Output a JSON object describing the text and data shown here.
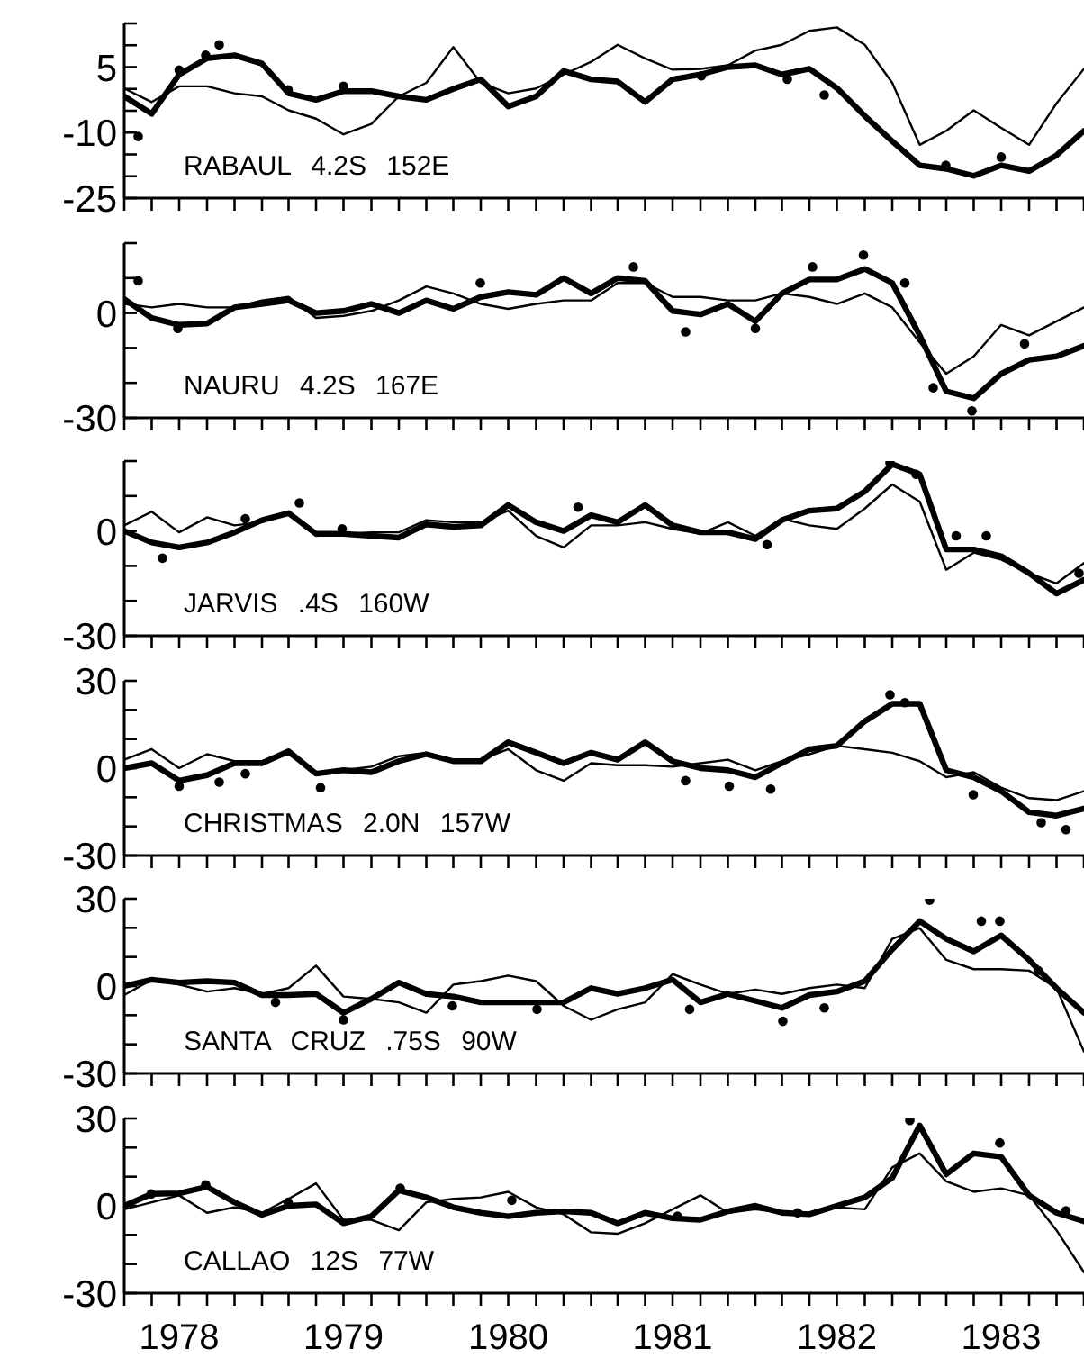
{
  "chart_data": [
    {
      "type": "line",
      "annotations": [
        "RABAUL 4.2S 152E"
      ],
      "tick_labels": "y",
      "xlim": [
        "1978-03",
        "1984-01"
      ],
      "ylim": [
        -25,
        15
      ],
      "yticks": [
        -25,
        {
          "value": -20,
          "label": null
        },
        {
          "value": -15,
          "label": null
        },
        -10,
        {
          "value": -5,
          "label": null
        },
        {
          "value": 0,
          "label": null
        },
        5,
        {
          "value": 10,
          "label": null
        },
        {
          "value": 15,
          "label": null
        }
      ],
      "xticks": [
        {
          "value": "1978-03",
          "label": null
        },
        {
          "value": "1978-05",
          "label": null
        },
        {
          "value": "1978-07",
          "label": null
        },
        {
          "value": "1978-09",
          "label": null
        },
        {
          "value": "1978-11",
          "label": null
        },
        {
          "value": "1979-01",
          "label": null
        },
        {
          "value": "1979-03",
          "label": null
        },
        {
          "value": "1979-05",
          "label": null
        },
        {
          "value": "1979-07",
          "label": null
        },
        {
          "value": "1979-09",
          "label": null
        },
        {
          "value": "1979-11",
          "label": null
        },
        {
          "value": "1980-01",
          "label": null
        },
        {
          "value": "1980-03",
          "label": null
        },
        {
          "value": "1980-05",
          "label": null
        },
        {
          "value": "1980-07",
          "label": null
        },
        {
          "value": "1980-09",
          "label": null
        },
        {
          "value": "1980-11",
          "label": null
        },
        {
          "value": "1981-01",
          "label": null
        },
        {
          "value": "1981-03",
          "label": null
        },
        {
          "value": "1981-05",
          "label": null
        },
        {
          "value": "1981-07",
          "label": null
        },
        {
          "value": "1981-09",
          "label": null
        },
        {
          "value": "1981-11",
          "label": null
        },
        {
          "value": "1982-01",
          "label": null
        },
        {
          "value": "1982-03",
          "label": null
        },
        {
          "value": "1982-05",
          "label": null
        },
        {
          "value": "1982-07",
          "label": null
        },
        {
          "value": "1982-09",
          "label": null
        },
        {
          "value": "1982-11",
          "label": null
        },
        {
          "value": "1983-01",
          "label": null
        },
        {
          "value": "1983-03",
          "label": null
        },
        {
          "value": "1983-05",
          "label": null
        },
        {
          "value": "1983-07",
          "label": null
        },
        {
          "value": "1983-09",
          "label": null
        },
        {
          "value": "1983-11",
          "label": null
        },
        {
          "value": "1984-01",
          "label": null
        }
      ],
      "x": [
        "1978-03",
        "1978-05",
        "1978-07",
        "1978-09",
        "1978-11",
        "1979-01",
        "1979-03",
        "1979-05",
        "1979-07",
        "1979-09",
        "1979-11",
        "1980-01",
        "1980-03",
        "1980-05",
        "1980-07",
        "1980-09",
        "1980-11",
        "1981-01",
        "1981-03",
        "1981-05",
        "1981-07",
        "1981-09",
        "1981-11",
        "1982-01",
        "1982-03",
        "1982-05",
        "1982-07",
        "1982-09",
        "1982-11",
        "1983-01",
        "1983-03",
        "1983-05",
        "1983-07",
        "1983-09",
        "1983-11",
        "1984-01"
      ],
      "series": [
        {
          "type": "line",
          "color": "#000000",
          "values": [
            -1.7,
            -5.7,
            3.3,
            7,
            7.7,
            5.8,
            -1,
            -2.5,
            -0.5,
            -0.5,
            -1.7,
            -2.5,
            0,
            2.2,
            -4,
            -1.7,
            4.1,
            2.2,
            1.7,
            -3,
            2.2,
            3.3,
            5,
            5.4,
            3.3,
            4.6,
            0.2,
            -6.2,
            -12,
            -17.5,
            -18.3,
            -19.9,
            -17.5,
            -18.8,
            -15.2,
            -9.6
          ]
        },
        {
          "type": "line",
          "color": "#000000",
          "values": [
            0.1,
            -3,
            0.6,
            0.6,
            -1,
            -1.7,
            -4.9,
            -6.8,
            -10.4,
            -8,
            -1.7,
            1.4,
            9.6,
            1.4,
            -1,
            0.1,
            3.3,
            6.2,
            10.1,
            7,
            4.4,
            4.6,
            5.4,
            8.8,
            10.1,
            13.3,
            14.1,
            10.1,
            1.4,
            -12.8,
            -9.6,
            -4.9,
            -8.9,
            -12.8,
            -3.3,
            4.6
          ]
        },
        {
          "type": "scatter",
          "marker": "circle",
          "color": "#000000",
          "x": [
            "1978-04-01",
            "1978-07-01",
            "1978-08-29",
            "1978-09-28",
            "1979-02-28",
            "1979-07-01",
            "1981-09-03",
            "1982-03-13",
            "1982-06-03",
            "1983-02-28",
            "1983-07-01"
          ],
          "values": [
            -10.9,
            4.3,
            7.7,
            10.1,
            -0.2,
            0.6,
            3,
            2.2,
            -1.4,
            -17.5,
            -15.6
          ]
        }
      ]
    },
    {
      "type": "line",
      "annotations": [
        "NAURU 4.2S 167E"
      ],
      "tick_labels": "y",
      "xlim": [
        "1978-03",
        "1984-01"
      ],
      "ylim": [
        -30,
        20
      ],
      "yticks": [
        -30,
        {
          "value": -20,
          "label": null
        },
        {
          "value": -10,
          "label": null
        },
        0,
        {
          "value": 10,
          "label": null
        },
        {
          "value": 20,
          "label": null
        }
      ],
      "xticks": [
        {
          "value": "1978-03",
          "label": null
        },
        {
          "value": "1978-05",
          "label": null
        },
        {
          "value": "1978-07",
          "label": null
        },
        {
          "value": "1978-09",
          "label": null
        },
        {
          "value": "1978-11",
          "label": null
        },
        {
          "value": "1979-01",
          "label": null
        },
        {
          "value": "1979-03",
          "label": null
        },
        {
          "value": "1979-05",
          "label": null
        },
        {
          "value": "1979-07",
          "label": null
        },
        {
          "value": "1979-09",
          "label": null
        },
        {
          "value": "1979-11",
          "label": null
        },
        {
          "value": "1980-01",
          "label": null
        },
        {
          "value": "1980-03",
          "label": null
        },
        {
          "value": "1980-05",
          "label": null
        },
        {
          "value": "1980-07",
          "label": null
        },
        {
          "value": "1980-09",
          "label": null
        },
        {
          "value": "1980-11",
          "label": null
        },
        {
          "value": "1981-01",
          "label": null
        },
        {
          "value": "1981-03",
          "label": null
        },
        {
          "value": "1981-05",
          "label": null
        },
        {
          "value": "1981-07",
          "label": null
        },
        {
          "value": "1981-09",
          "label": null
        },
        {
          "value": "1981-11",
          "label": null
        },
        {
          "value": "1982-01",
          "label": null
        },
        {
          "value": "1982-03",
          "label": null
        },
        {
          "value": "1982-05",
          "label": null
        },
        {
          "value": "1982-07",
          "label": null
        },
        {
          "value": "1982-09",
          "label": null
        },
        {
          "value": "1982-11",
          "label": null
        },
        {
          "value": "1983-01",
          "label": null
        },
        {
          "value": "1983-03",
          "label": null
        },
        {
          "value": "1983-05",
          "label": null
        },
        {
          "value": "1983-07",
          "label": null
        },
        {
          "value": "1983-09",
          "label": null
        },
        {
          "value": "1983-11",
          "label": null
        },
        {
          "value": "1984-01",
          "label": null
        }
      ],
      "x": [
        "1978-03",
        "1978-05",
        "1978-07",
        "1978-09",
        "1978-11",
        "1979-01",
        "1979-03",
        "1979-05",
        "1979-07",
        "1979-09",
        "1979-11",
        "1980-01",
        "1980-03",
        "1980-05",
        "1980-07",
        "1980-09",
        "1980-11",
        "1981-01",
        "1981-03",
        "1981-05",
        "1981-07",
        "1981-09",
        "1981-11",
        "1982-01",
        "1982-03",
        "1982-05",
        "1982-07",
        "1982-09",
        "1982-11",
        "1983-01",
        "1983-03",
        "1983-05",
        "1983-07",
        "1983-09",
        "1983-11",
        "1984-01"
      ],
      "series": [
        {
          "type": "line",
          "color": "#000000",
          "values": [
            4,
            -1.4,
            -3.4,
            -3,
            1.6,
            2.6,
            3.6,
            0,
            0.6,
            2.6,
            0,
            3.6,
            1.2,
            4.6,
            6,
            5.2,
            10,
            5.6,
            10,
            9.2,
            0.6,
            -0.4,
            2.6,
            -2.4,
            5.6,
            9.6,
            9.6,
            12.6,
            8.6,
            -6.4,
            -22.4,
            -24.4,
            -17.4,
            -13.4,
            -12.4,
            -9.4
          ]
        },
        {
          "type": "line",
          "color": "#000000",
          "values": [
            2.6,
            1.6,
            2.6,
            1.6,
            1.6,
            3.6,
            4.6,
            -1.4,
            -0.8,
            0.6,
            3.6,
            7.6,
            5.6,
            2.6,
            1.2,
            2.6,
            3.6,
            3.6,
            8.6,
            8.6,
            4.6,
            4.6,
            3.6,
            3.6,
            5.6,
            4.6,
            2.6,
            5.6,
            1.6,
            -8.4,
            -17.4,
            -12.4,
            -3.4,
            -6.4,
            -2.4,
            1.6
          ]
        },
        {
          "type": "scatter",
          "marker": "circle",
          "color": "#000000",
          "x": [
            "1978-04-01",
            "1978-06-28",
            "1980-04-30",
            "1981-04-05",
            "1981-07-30",
            "1982-01-01",
            "1982-05-08",
            "1982-08-29",
            "1982-11-29",
            "1983-01-31",
            "1983-04-27",
            "1983-08-22"
          ],
          "values": [
            9.2,
            -4.4,
            8.6,
            13.2,
            -5.4,
            -4.4,
            13.2,
            16.6,
            8.6,
            -21.4,
            -28,
            -8.8
          ]
        }
      ]
    },
    {
      "type": "line",
      "annotations": [
        "JARVIS .4S 160W"
      ],
      "tick_labels": "y",
      "xlim": [
        "1978-03",
        "1984-01"
      ],
      "ylim": [
        -30,
        20
      ],
      "yticks": [
        -30,
        {
          "value": -20,
          "label": null
        },
        {
          "value": -10,
          "label": null
        },
        0,
        {
          "value": 10,
          "label": null
        },
        {
          "value": 20,
          "label": null
        }
      ],
      "xticks": [
        {
          "value": "1978-03",
          "label": null
        },
        {
          "value": "1978-05",
          "label": null
        },
        {
          "value": "1978-07",
          "label": null
        },
        {
          "value": "1978-09",
          "label": null
        },
        {
          "value": "1978-11",
          "label": null
        },
        {
          "value": "1979-01",
          "label": null
        },
        {
          "value": "1979-03",
          "label": null
        },
        {
          "value": "1979-05",
          "label": null
        },
        {
          "value": "1979-07",
          "label": null
        },
        {
          "value": "1979-09",
          "label": null
        },
        {
          "value": "1979-11",
          "label": null
        },
        {
          "value": "1980-01",
          "label": null
        },
        {
          "value": "1980-03",
          "label": null
        },
        {
          "value": "1980-05",
          "label": null
        },
        {
          "value": "1980-07",
          "label": null
        },
        {
          "value": "1980-09",
          "label": null
        },
        {
          "value": "1980-11",
          "label": null
        },
        {
          "value": "1981-01",
          "label": null
        },
        {
          "value": "1981-03",
          "label": null
        },
        {
          "value": "1981-05",
          "label": null
        },
        {
          "value": "1981-07",
          "label": null
        },
        {
          "value": "1981-09",
          "label": null
        },
        {
          "value": "1981-11",
          "label": null
        },
        {
          "value": "1982-01",
          "label": null
        },
        {
          "value": "1982-03",
          "label": null
        },
        {
          "value": "1982-05",
          "label": null
        },
        {
          "value": "1982-07",
          "label": null
        },
        {
          "value": "1982-09",
          "label": null
        },
        {
          "value": "1982-11",
          "label": null
        },
        {
          "value": "1983-01",
          "label": null
        },
        {
          "value": "1983-03",
          "label": null
        },
        {
          "value": "1983-05",
          "label": null
        },
        {
          "value": "1983-07",
          "label": null
        },
        {
          "value": "1983-09",
          "label": null
        },
        {
          "value": "1983-11",
          "label": null
        },
        {
          "value": "1984-01",
          "label": null
        }
      ],
      "x": [
        "1978-03",
        "1978-05",
        "1978-07",
        "1978-09",
        "1978-11",
        "1979-01",
        "1979-03",
        "1979-05",
        "1979-07",
        "1979-09",
        "1979-11",
        "1980-01",
        "1980-03",
        "1980-05",
        "1980-07",
        "1980-09",
        "1980-11",
        "1981-01",
        "1981-03",
        "1981-05",
        "1981-07",
        "1981-09",
        "1981-11",
        "1982-01",
        "1982-03",
        "1982-05",
        "1982-07",
        "1982-09",
        "1982-11",
        "1983-01",
        "1983-03",
        "1983-05",
        "1983-07",
        "1983-09",
        "1983-11",
        "1984-01"
      ],
      "series": [
        {
          "type": "line",
          "color": "#000000",
          "values": [
            0,
            -3.3,
            -4.7,
            -3.3,
            -0.4,
            3.1,
            5.1,
            -0.8,
            -0.8,
            -1.4,
            -1.9,
            1.9,
            1.2,
            1.6,
            7.4,
            2.5,
            0,
            4.5,
            2.5,
            7.4,
            1.6,
            -0.4,
            -0.4,
            -2.3,
            3.1,
            5.8,
            6.4,
            11.3,
            19.1,
            16.2,
            -5.3,
            -5.3,
            -7.2,
            -12.1,
            -17.9,
            -14
          ]
        },
        {
          "type": "line",
          "color": "#000000",
          "values": [
            1.6,
            5.5,
            -0.4,
            3.9,
            1.6,
            2.5,
            5.1,
            -1.4,
            -0.8,
            -0.4,
            -0.4,
            3.1,
            2.5,
            2.5,
            5.8,
            -1.4,
            -4.7,
            1.6,
            1.6,
            2.5,
            0.6,
            -0.8,
            2.5,
            -1.4,
            3.5,
            1.6,
            0.6,
            6.4,
            13.3,
            8.4,
            -11.1,
            -6.2,
            -8.2,
            -12.1,
            -15,
            -9.2
          ]
        },
        {
          "type": "scatter",
          "marker": "circle",
          "color": "#000000",
          "x": [
            "1978-05-25",
            "1978-11-25",
            "1979-03-25",
            "1979-06-28",
            "1980-12-03",
            "1982-01-27",
            "1982-10-27",
            "1982-12-24",
            "1983-03-23",
            "1983-05-29",
            "1983-12-21"
          ],
          "values": [
            -7.8,
            3.5,
            8,
            0.6,
            6.8,
            -3.9,
            19.5,
            16.2,
            -1.4,
            -1.4,
            -12.1
          ]
        }
      ]
    },
    {
      "type": "line",
      "annotations": [
        "CHRISTMAS 2.0N 157W"
      ],
      "tick_labels": "y",
      "xlim": [
        "1978-03",
        "1984-01"
      ],
      "ylim": [
        -30,
        30
      ],
      "yticks": [
        -30,
        {
          "value": -20,
          "label": null
        },
        {
          "value": -10,
          "label": null
        },
        0,
        {
          "value": 10,
          "label": null
        },
        {
          "value": 20,
          "label": null
        },
        30
      ],
      "xticks": [
        {
          "value": "1978-03",
          "label": null
        },
        {
          "value": "1978-05",
          "label": null
        },
        {
          "value": "1978-07",
          "label": null
        },
        {
          "value": "1978-09",
          "label": null
        },
        {
          "value": "1978-11",
          "label": null
        },
        {
          "value": "1979-01",
          "label": null
        },
        {
          "value": "1979-03",
          "label": null
        },
        {
          "value": "1979-05",
          "label": null
        },
        {
          "value": "1979-07",
          "label": null
        },
        {
          "value": "1979-09",
          "label": null
        },
        {
          "value": "1979-11",
          "label": null
        },
        {
          "value": "1980-01",
          "label": null
        },
        {
          "value": "1980-03",
          "label": null
        },
        {
          "value": "1980-05",
          "label": null
        },
        {
          "value": "1980-07",
          "label": null
        },
        {
          "value": "1980-09",
          "label": null
        },
        {
          "value": "1980-11",
          "label": null
        },
        {
          "value": "1981-01",
          "label": null
        },
        {
          "value": "1981-03",
          "label": null
        },
        {
          "value": "1981-05",
          "label": null
        },
        {
          "value": "1981-07",
          "label": null
        },
        {
          "value": "1981-09",
          "label": null
        },
        {
          "value": "1981-11",
          "label": null
        },
        {
          "value": "1982-01",
          "label": null
        },
        {
          "value": "1982-03",
          "label": null
        },
        {
          "value": "1982-05",
          "label": null
        },
        {
          "value": "1982-07",
          "label": null
        },
        {
          "value": "1982-09",
          "label": null
        },
        {
          "value": "1982-11",
          "label": null
        },
        {
          "value": "1983-01",
          "label": null
        },
        {
          "value": "1983-03",
          "label": null
        },
        {
          "value": "1983-05",
          "label": null
        },
        {
          "value": "1983-07",
          "label": null
        },
        {
          "value": "1983-09",
          "label": null
        },
        {
          "value": "1983-11",
          "label": null
        },
        {
          "value": "1984-01",
          "label": null
        }
      ],
      "x": [
        "1978-03",
        "1978-05",
        "1978-07",
        "1978-09",
        "1978-11",
        "1979-01",
        "1979-03",
        "1979-05",
        "1979-07",
        "1979-09",
        "1979-11",
        "1980-01",
        "1980-03",
        "1980-05",
        "1980-07",
        "1980-09",
        "1980-11",
        "1981-01",
        "1981-03",
        "1981-05",
        "1981-07",
        "1981-09",
        "1981-11",
        "1982-01",
        "1982-03",
        "1982-05",
        "1982-07",
        "1982-09",
        "1982-11",
        "1983-01",
        "1983-03",
        "1983-05",
        "1983-07",
        "1983-09",
        "1983-11",
        "1984-01"
      ],
      "series": [
        {
          "type": "line",
          "color": "#000000",
          "values": [
            0,
            1.7,
            -4.3,
            -2.4,
            1.7,
            1.7,
            5.8,
            -1.9,
            -0.7,
            -1.4,
            2.4,
            4.8,
            2.4,
            2.4,
            8.9,
            5.3,
            1.7,
            5.3,
            2.9,
            8.9,
            2.4,
            0,
            -0.7,
            -3.1,
            1.7,
            6.5,
            7.7,
            16.1,
            22.1,
            22.1,
            -0.7,
            -3.1,
            -7.9,
            -15.1,
            -16.3,
            -13.9
          ]
        },
        {
          "type": "line",
          "color": "#000000",
          "values": [
            2.9,
            6.5,
            0,
            4.8,
            2.4,
            2.4,
            4.8,
            -1.9,
            -0.7,
            0.5,
            4.1,
            5.3,
            2.9,
            2.9,
            6.5,
            -0.7,
            -4.3,
            1.7,
            1,
            1,
            0.5,
            1.7,
            2.9,
            -0.7,
            2.4,
            4.8,
            7.7,
            6.5,
            5.3,
            2.4,
            -3.1,
            -1.4,
            -6.7,
            -10.3,
            -11,
            -7.9
          ]
        },
        {
          "type": "scatter",
          "marker": "circle",
          "color": "#000000",
          "x": [
            "1978-07-01",
            "1978-09-28",
            "1978-11-25",
            "1979-05-11",
            "1981-07-30",
            "1981-11-04",
            "1982-02-04",
            "1982-10-27",
            "1982-11-29",
            "1983-04-30",
            "1983-09-28",
            "1983-11-22"
          ],
          "values": [
            -6.2,
            -4.8,
            -1.9,
            -6.7,
            -4.3,
            -6.2,
            -7.2,
            25.2,
            22.5,
            -9.1,
            -18.7,
            -21.1
          ]
        }
      ]
    },
    {
      "type": "line",
      "annotations": [
        "SANTA CRUZ .75S 90W"
      ],
      "tick_labels": "y",
      "xlim": [
        "1978-03",
        "1984-01"
      ],
      "ylim": [
        -30,
        30
      ],
      "yticks": [
        -30,
        {
          "value": -20,
          "label": null
        },
        {
          "value": -10,
          "label": null
        },
        0,
        {
          "value": 10,
          "label": null
        },
        {
          "value": 20,
          "label": null
        },
        30
      ],
      "xticks": [
        {
          "value": "1978-03",
          "label": null
        },
        {
          "value": "1978-05",
          "label": null
        },
        {
          "value": "1978-07",
          "label": null
        },
        {
          "value": "1978-09",
          "label": null
        },
        {
          "value": "1978-11",
          "label": null
        },
        {
          "value": "1979-01",
          "label": null
        },
        {
          "value": "1979-03",
          "label": null
        },
        {
          "value": "1979-05",
          "label": null
        },
        {
          "value": "1979-07",
          "label": null
        },
        {
          "value": "1979-09",
          "label": null
        },
        {
          "value": "1979-11",
          "label": null
        },
        {
          "value": "1980-01",
          "label": null
        },
        {
          "value": "1980-03",
          "label": null
        },
        {
          "value": "1980-05",
          "label": null
        },
        {
          "value": "1980-07",
          "label": null
        },
        {
          "value": "1980-09",
          "label": null
        },
        {
          "value": "1980-11",
          "label": null
        },
        {
          "value": "1981-01",
          "label": null
        },
        {
          "value": "1981-03",
          "label": null
        },
        {
          "value": "1981-05",
          "label": null
        },
        {
          "value": "1981-07",
          "label": null
        },
        {
          "value": "1981-09",
          "label": null
        },
        {
          "value": "1981-11",
          "label": null
        },
        {
          "value": "1982-01",
          "label": null
        },
        {
          "value": "1982-03",
          "label": null
        },
        {
          "value": "1982-05",
          "label": null
        },
        {
          "value": "1982-07",
          "label": null
        },
        {
          "value": "1982-09",
          "label": null
        },
        {
          "value": "1982-11",
          "label": null
        },
        {
          "value": "1983-01",
          "label": null
        },
        {
          "value": "1983-03",
          "label": null
        },
        {
          "value": "1983-05",
          "label": null
        },
        {
          "value": "1983-07",
          "label": null
        },
        {
          "value": "1983-09",
          "label": null
        },
        {
          "value": "1983-11",
          "label": null
        },
        {
          "value": "1984-01",
          "label": null
        }
      ],
      "x": [
        "1978-03",
        "1978-05",
        "1978-07",
        "1978-09",
        "1978-11",
        "1979-01",
        "1979-03",
        "1979-05",
        "1979-07",
        "1979-09",
        "1979-11",
        "1980-01",
        "1980-03",
        "1980-05",
        "1980-07",
        "1980-09",
        "1980-11",
        "1981-01",
        "1981-03",
        "1981-05",
        "1981-07",
        "1981-09",
        "1981-11",
        "1982-01",
        "1982-03",
        "1982-05",
        "1982-07",
        "1982-09",
        "1982-11",
        "1983-01",
        "1983-03",
        "1983-05",
        "1983-07",
        "1983-09",
        "1983-11",
        "1984-01"
      ],
      "series": [
        {
          "type": "line",
          "color": "#000000",
          "values": [
            0,
            2.2,
            1.2,
            1.7,
            1.2,
            -3.1,
            -3.1,
            -2.7,
            -9.2,
            -4.4,
            1.2,
            -2.7,
            -3.6,
            -5.6,
            -5.6,
            -5.6,
            -5.6,
            -0.7,
            -2.7,
            -0.7,
            2.2,
            -5.6,
            -2.7,
            -5.1,
            -7.5,
            -3.1,
            -1.9,
            1.7,
            12.6,
            22.3,
            16.2,
            11.9,
            17.4,
            9,
            -0.7,
            -9.2
          ]
        },
        {
          "type": "line",
          "color": "#000000",
          "values": [
            -3.1,
            2.2,
            0.5,
            -1.9,
            -0.7,
            -2.7,
            -0.7,
            7,
            -3.6,
            -4.4,
            -5.6,
            -9.2,
            0.5,
            1.7,
            3.6,
            1.7,
            -6.8,
            -11.6,
            -8,
            -5.6,
            4.1,
            0.5,
            -2.7,
            -1.2,
            -2.7,
            -0.7,
            0.5,
            -0.7,
            16.2,
            19.9,
            9,
            5.8,
            5.8,
            5.3,
            -0.7,
            -22.5
          ]
        },
        {
          "type": "scatter",
          "marker": "circle",
          "color": "#000000",
          "x": [
            "1979-01-31",
            "1979-07-01",
            "1980-02-28",
            "1980-09-03",
            "1981-08-08",
            "1982-03-03",
            "1982-06-03",
            "1983-01-23",
            "1983-05-18",
            "1983-06-28",
            "1983-09-21"
          ],
          "values": [
            -5.6,
            -11.6,
            -6.8,
            -8,
            -8,
            -12.1,
            -7.5,
            29.5,
            22.3,
            22.3,
            5.3
          ]
        }
      ]
    },
    {
      "type": "line",
      "annotations": [
        "CALLAO 12S 77W"
      ],
      "xlim": [
        "1978-03",
        "1984-01"
      ],
      "ylim": [
        -30,
        30
      ],
      "yticks": [
        -30,
        {
          "value": -20,
          "label": null
        },
        {
          "value": -10,
          "label": null
        },
        0,
        {
          "value": 10,
          "label": null
        },
        {
          "value": 20,
          "label": null
        },
        30
      ],
      "xticks": [
        {
          "value": "1978-03",
          "label": null
        },
        {
          "value": "1978-05",
          "label": null
        },
        {
          "value": "1978-07",
          "label": "1978"
        },
        {
          "value": "1978-09",
          "label": null
        },
        {
          "value": "1978-11",
          "label": null
        },
        {
          "value": "1979-01",
          "label": null
        },
        {
          "value": "1979-03",
          "label": null
        },
        {
          "value": "1979-05",
          "label": null
        },
        {
          "value": "1979-07",
          "label": "1979"
        },
        {
          "value": "1979-09",
          "label": null
        },
        {
          "value": "1979-11",
          "label": null
        },
        {
          "value": "1980-01",
          "label": null
        },
        {
          "value": "1980-03",
          "label": null
        },
        {
          "value": "1980-05",
          "label": null
        },
        {
          "value": "1980-07",
          "label": "1980"
        },
        {
          "value": "1980-09",
          "label": null
        },
        {
          "value": "1980-11",
          "label": null
        },
        {
          "value": "1981-01",
          "label": null
        },
        {
          "value": "1981-03",
          "label": null
        },
        {
          "value": "1981-05",
          "label": null
        },
        {
          "value": "1981-07",
          "label": "1981"
        },
        {
          "value": "1981-09",
          "label": null
        },
        {
          "value": "1981-11",
          "label": null
        },
        {
          "value": "1982-01",
          "label": null
        },
        {
          "value": "1982-03",
          "label": null
        },
        {
          "value": "1982-05",
          "label": null
        },
        {
          "value": "1982-07",
          "label": "1982"
        },
        {
          "value": "1982-09",
          "label": null
        },
        {
          "value": "1982-11",
          "label": null
        },
        {
          "value": "1983-01",
          "label": null
        },
        {
          "value": "1983-03",
          "label": null
        },
        {
          "value": "1983-05",
          "label": null
        },
        {
          "value": "1983-07",
          "label": "1983"
        },
        {
          "value": "1983-09",
          "label": null
        },
        {
          "value": "1983-11",
          "label": null
        },
        {
          "value": "1984-01",
          "label": null
        }
      ],
      "x": [
        "1978-03",
        "1978-05",
        "1978-07",
        "1978-09",
        "1978-11",
        "1979-01",
        "1979-03",
        "1979-05",
        "1979-07",
        "1979-09",
        "1979-11",
        "1980-01",
        "1980-03",
        "1980-05",
        "1980-07",
        "1980-09",
        "1980-11",
        "1981-01",
        "1981-03",
        "1981-05",
        "1981-07",
        "1981-09",
        "1981-11",
        "1982-01",
        "1982-03",
        "1982-05",
        "1982-07",
        "1982-09",
        "1982-11",
        "1983-01",
        "1983-03",
        "1983-05",
        "1983-07",
        "1983-09",
        "1983-11",
        "1984-01"
      ],
      "series": [
        {
          "type": "line",
          "color": "#000000",
          "values": [
            0,
            4.1,
            4.3,
            6.5,
            1.2,
            -3.1,
            0,
            0.5,
            -6,
            -3.6,
            5.3,
            2.9,
            -0.5,
            -2.4,
            -3.6,
            -2.4,
            -1.9,
            -2.4,
            -6,
            -2.4,
            -4.3,
            -4.8,
            -1.9,
            0,
            -2.4,
            -2.9,
            0,
            2.9,
            9.6,
            27.6,
            10.8,
            18,
            16.8,
            3.6,
            -2.4,
            -5.3
          ]
        },
        {
          "type": "line",
          "color": "#000000",
          "values": [
            -1.2,
            1.2,
            3.6,
            -2.4,
            -0.5,
            -2.4,
            2.4,
            7.7,
            -4.8,
            -4.8,
            -8.4,
            1.2,
            2.4,
            2.9,
            4.8,
            -0.5,
            -2.9,
            -9.1,
            -9.6,
            -6,
            -1.2,
            3.6,
            -2.4,
            -1.2,
            -2.4,
            -2.4,
            -0.5,
            -1.2,
            13.2,
            18,
            8.4,
            4.8,
            6,
            3.6,
            -8.4,
            -22.8
          ]
        },
        {
          "type": "scatter",
          "marker": "circle",
          "color": "#000000",
          "x": [
            "1978-04-30",
            "1978-08-29",
            "1979-02-28",
            "1979-11-04",
            "1980-07-09",
            "1981-07-12",
            "1982-04-05",
            "1982-12-10",
            "1983-06-28",
            "1983-11-22"
          ],
          "values": [
            4.1,
            7.2,
            1.2,
            6,
            1.9,
            -3.6,
            -2.4,
            29.3,
            21.6,
            -1.7
          ]
        }
      ]
    }
  ]
}
